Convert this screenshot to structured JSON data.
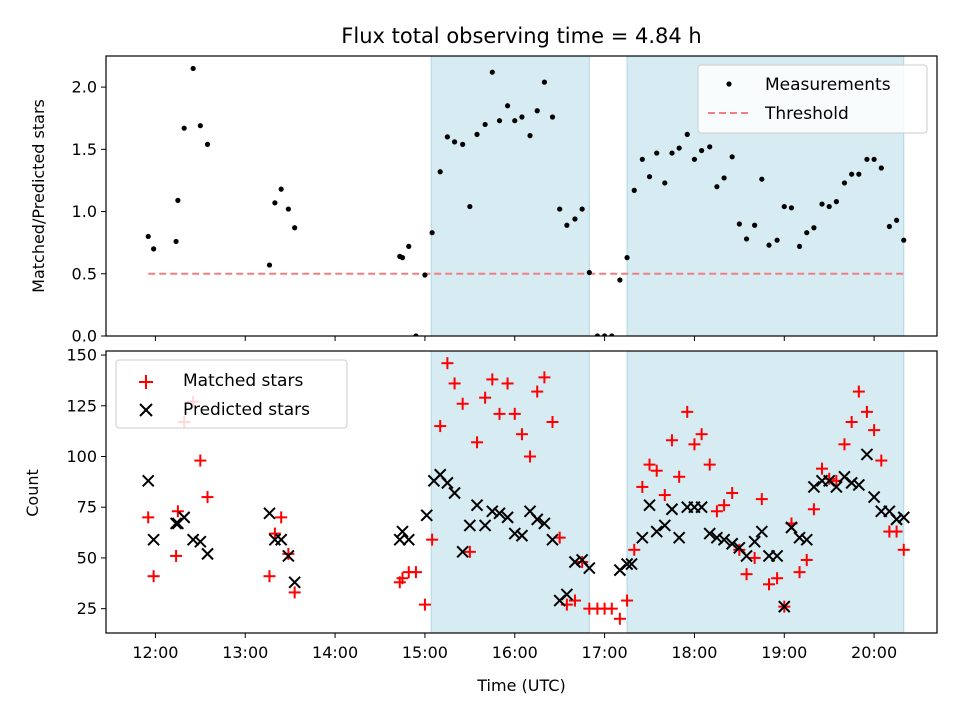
{
  "title": "Flux total observing time = 4.84 h",
  "colors": {
    "shade": "#add8e6",
    "threshold": "#f08080",
    "matched": "#ff0000",
    "predicted": "#000000",
    "measure": "#000000"
  },
  "chart_data": [
    {
      "type": "scatter",
      "panel": "top",
      "title": "Flux total observing time = 4.84 h",
      "xlabel": "",
      "ylabel": "Matched/Predicted stars",
      "xlim": [
        11.45,
        20.7
      ],
      "ylim": [
        0,
        2.25
      ],
      "yticks": [
        0.0,
        0.5,
        1.0,
        1.5,
        2.0
      ],
      "yticklabels": [
        "0.0",
        "0.5",
        "1.0",
        "1.5",
        "2.0"
      ],
      "shaded_intervals": [
        [
          15.07,
          16.83
        ],
        [
          17.25,
          20.33
        ]
      ],
      "legend": {
        "position": "top-right",
        "entries": [
          "Measurements",
          "Threshold"
        ]
      },
      "threshold": {
        "name": "Threshold",
        "value": 0.5,
        "x_range": [
          11.92,
          20.33
        ]
      },
      "series": [
        {
          "name": "Measurements",
          "x": [
            11.92,
            11.98,
            12.23,
            12.25,
            12.32,
            12.42,
            12.5,
            12.58,
            13.27,
            13.33,
            13.4,
            13.48,
            13.55,
            14.72,
            14.75,
            14.82,
            14.9,
            15.0,
            15.08,
            15.17,
            15.25,
            15.33,
            15.42,
            15.5,
            15.58,
            15.67,
            15.75,
            15.83,
            15.92,
            16.0,
            16.08,
            16.17,
            16.25,
            16.33,
            16.42,
            16.5,
            16.58,
            16.67,
            16.75,
            16.83,
            16.92,
            17.0,
            17.08,
            17.17,
            17.25,
            17.33,
            17.42,
            17.5,
            17.58,
            17.67,
            17.75,
            17.83,
            17.92,
            18.0,
            18.08,
            18.17,
            18.25,
            18.33,
            18.42,
            18.5,
            18.58,
            18.67,
            18.75,
            18.83,
            18.92,
            19.0,
            19.08,
            19.17,
            19.25,
            19.33,
            19.42,
            19.5,
            19.58,
            19.67,
            19.75,
            19.83,
            19.92,
            20.0,
            20.08,
            20.17,
            20.25,
            20.33
          ],
          "y": [
            0.8,
            0.7,
            0.76,
            1.09,
            1.67,
            2.15,
            1.69,
            1.54,
            0.57,
            1.07,
            1.18,
            1.02,
            0.87,
            0.64,
            0.63,
            0.72,
            0.0,
            0.49,
            0.83,
            1.32,
            1.6,
            1.56,
            1.54,
            1.04,
            1.62,
            1.7,
            2.12,
            1.73,
            1.85,
            1.73,
            1.76,
            1.61,
            1.81,
            2.04,
            1.76,
            1.02,
            0.89,
            0.94,
            1.02,
            0.51,
            0.0,
            0.0,
            0.0,
            0.45,
            0.63,
            1.17,
            1.42,
            1.28,
            1.47,
            1.23,
            1.47,
            1.51,
            1.62,
            1.42,
            1.49,
            1.52,
            1.2,
            1.27,
            1.44,
            0.9,
            0.78,
            0.89,
            1.26,
            0.73,
            0.77,
            1.04,
            1.03,
            0.72,
            0.83,
            0.87,
            1.06,
            1.04,
            1.08,
            1.23,
            1.3,
            1.3,
            1.42,
            1.42,
            1.35,
            0.88,
            0.93,
            0.77
          ]
        }
      ]
    },
    {
      "type": "scatter",
      "panel": "bottom",
      "xlabel": "Time (UTC)",
      "ylabel": "Count",
      "xlim": [
        11.45,
        20.7
      ],
      "ylim": [
        13,
        152
      ],
      "xticks": [
        12,
        13,
        14,
        15,
        16,
        17,
        18,
        19,
        20
      ],
      "xticklabels": [
        "12:00",
        "13:00",
        "14:00",
        "15:00",
        "16:00",
        "17:00",
        "18:00",
        "19:00",
        "20:00"
      ],
      "yticks": [
        25,
        50,
        75,
        100,
        125,
        150
      ],
      "yticklabels": [
        "25",
        "50",
        "75",
        "100",
        "125",
        "150"
      ],
      "shaded_intervals": [
        [
          15.07,
          16.83
        ],
        [
          17.25,
          20.33
        ]
      ],
      "legend": {
        "position": "top-left",
        "entries": [
          "Matched stars",
          "Predicted stars"
        ]
      },
      "series": [
        {
          "name": "Matched stars",
          "marker": "plus",
          "x": [
            11.92,
            11.98,
            12.23,
            12.25,
            12.32,
            12.42,
            12.5,
            12.58,
            13.27,
            13.33,
            13.4,
            13.48,
            13.55,
            14.72,
            14.75,
            14.82,
            14.9,
            15.0,
            15.08,
            15.17,
            15.25,
            15.33,
            15.42,
            15.5,
            15.58,
            15.67,
            15.75,
            15.83,
            15.92,
            16.0,
            16.08,
            16.17,
            16.25,
            16.33,
            16.42,
            16.5,
            16.58,
            16.67,
            16.75,
            16.83,
            16.92,
            17.0,
            17.08,
            17.17,
            17.25,
            17.33,
            17.42,
            17.5,
            17.58,
            17.67,
            17.75,
            17.83,
            17.92,
            18.0,
            18.08,
            18.17,
            18.25,
            18.33,
            18.42,
            18.5,
            18.58,
            18.67,
            18.75,
            18.83,
            18.92,
            19.0,
            19.08,
            19.17,
            19.25,
            19.33,
            19.42,
            19.5,
            19.58,
            19.67,
            19.75,
            19.83,
            19.92,
            20.0,
            20.08,
            20.17,
            20.25,
            20.33
          ],
          "y": [
            70,
            41,
            51,
            73,
            117,
            127,
            98,
            80,
            41,
            62,
            70,
            52,
            33,
            38,
            40,
            43,
            43,
            27,
            59,
            115,
            146,
            136,
            126,
            53,
            107,
            129,
            138,
            121,
            136,
            121,
            111,
            100,
            132,
            139,
            117,
            60,
            27,
            29,
            48,
            25,
            25,
            25,
            25,
            20,
            29,
            54,
            85,
            96,
            93,
            81,
            108,
            90,
            122,
            106,
            111,
            96,
            73,
            76,
            82,
            54,
            42,
            50,
            79,
            37,
            40,
            26,
            67,
            43,
            49,
            74,
            94,
            89,
            88,
            106,
            117,
            132,
            122,
            113,
            98,
            63,
            63,
            54
          ]
        },
        {
          "name": "Predicted stars",
          "marker": "x",
          "x": [
            11.92,
            11.98,
            12.23,
            12.25,
            12.32,
            12.42,
            12.5,
            12.58,
            13.27,
            13.33,
            13.4,
            13.48,
            13.55,
            14.72,
            14.75,
            14.82,
            15.02,
            15.1,
            15.17,
            15.25,
            15.33,
            15.42,
            15.5,
            15.58,
            15.67,
            15.75,
            15.83,
            15.92,
            16.0,
            16.08,
            16.17,
            16.25,
            16.33,
            16.42,
            16.5,
            16.58,
            16.67,
            16.75,
            16.83,
            17.17,
            17.25,
            17.3,
            17.42,
            17.5,
            17.58,
            17.67,
            17.75,
            17.83,
            17.92,
            18.0,
            18.08,
            18.17,
            18.25,
            18.33,
            18.42,
            18.5,
            18.58,
            18.67,
            18.75,
            18.83,
            18.92,
            19.0,
            19.08,
            19.17,
            19.25,
            19.33,
            19.42,
            19.5,
            19.58,
            19.67,
            19.75,
            19.83,
            19.92,
            20.0,
            20.08,
            20.17,
            20.25,
            20.33
          ],
          "y": [
            88,
            59,
            67,
            67,
            70,
            59,
            58,
            52,
            72,
            59,
            59,
            51,
            38,
            59,
            63,
            59,
            71,
            88,
            91,
            87,
            82,
            53,
            66,
            76,
            66,
            73,
            72,
            70,
            62,
            61,
            73,
            69,
            67,
            59,
            29,
            32,
            48,
            49,
            45,
            44,
            47,
            47,
            60,
            76,
            63,
            66,
            74,
            60,
            75,
            75,
            75,
            62,
            60,
            59,
            57,
            55,
            51,
            58,
            63,
            51,
            51,
            26,
            65,
            60,
            59,
            85,
            88,
            88,
            85,
            90,
            87,
            86,
            101,
            80,
            73,
            73,
            69,
            70
          ]
        }
      ]
    }
  ]
}
